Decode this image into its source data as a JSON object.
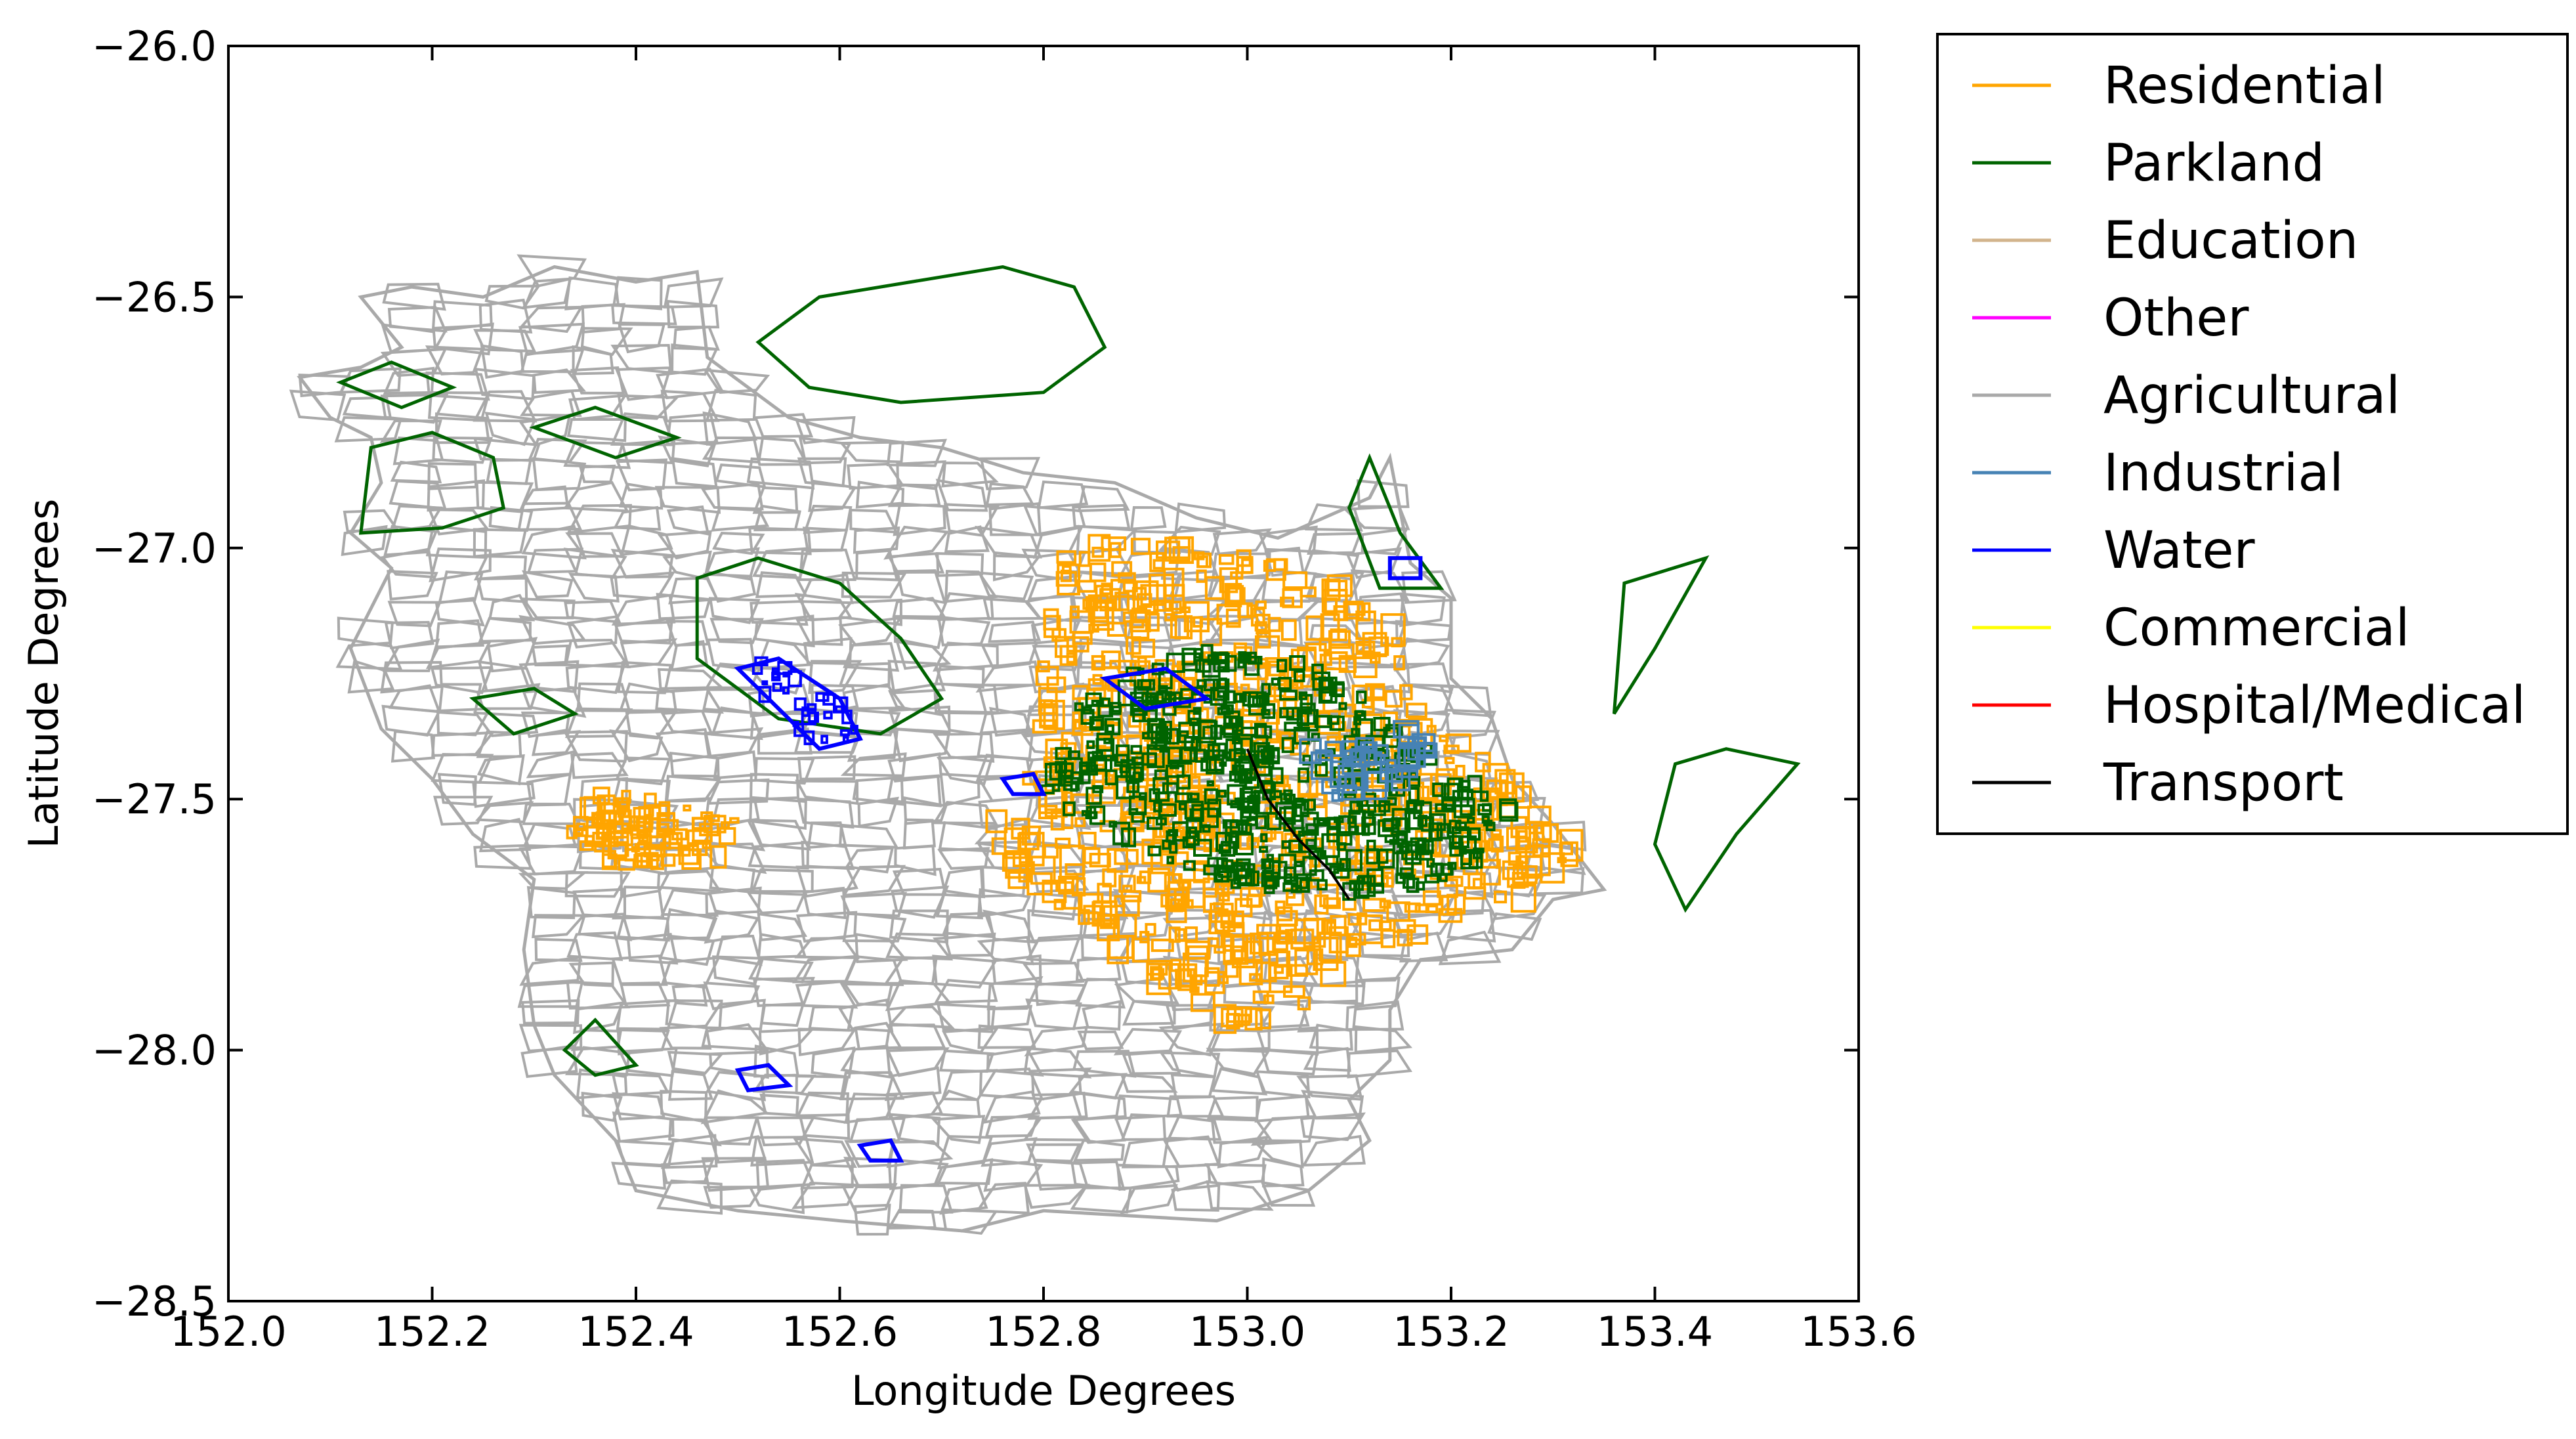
{
  "chart_data": {
    "type": "map",
    "title": "",
    "xlabel": "Longitude Degrees",
    "ylabel": "Latitude Degrees",
    "xlim": [
      152.0,
      153.6
    ],
    "ylim": [
      -28.5,
      -26.0
    ],
    "xticks": [
      152.0,
      152.2,
      152.4,
      152.6,
      152.8,
      153.0,
      153.2,
      153.4,
      153.6
    ],
    "xtick_labels": [
      "152.0",
      "152.2",
      "152.4",
      "152.6",
      "152.8",
      "153.0",
      "153.2",
      "153.4",
      "153.6"
    ],
    "yticks": [
      -26.0,
      -26.5,
      -27.0,
      -27.5,
      -28.0,
      -28.5
    ],
    "ytick_labels": [
      "−26.0",
      "−26.5",
      "−27.0",
      "−27.5",
      "−28.0",
      "−28.5"
    ],
    "grid": false,
    "legend_position": "outside-right-top",
    "series": [
      {
        "name": "Residential",
        "color": "#FFA500"
      },
      {
        "name": "Parkland",
        "color": "#006400"
      },
      {
        "name": "Education",
        "color": "#D2B48C"
      },
      {
        "name": "Other",
        "color": "#FF00FF"
      },
      {
        "name": "Agricultural",
        "color": "#A9A9A9"
      },
      {
        "name": "Industrial",
        "color": "#4682B4"
      },
      {
        "name": "Water",
        "color": "#0000FF"
      },
      {
        "name": "Commercial",
        "color": "#FFFF00"
      },
      {
        "name": "Hospital/Medical",
        "color": "#FF0000"
      },
      {
        "name": "Transport",
        "color": "#000000"
      }
    ],
    "regions": {
      "outline": [
        [
          152.07,
          -26.66
        ],
        [
          152.13,
          -26.64
        ],
        [
          152.17,
          -26.6
        ],
        [
          152.13,
          -26.5
        ],
        [
          152.18,
          -26.48
        ],
        [
          152.25,
          -26.5
        ],
        [
          152.32,
          -26.44
        ],
        [
          152.4,
          -26.47
        ],
        [
          152.46,
          -26.45
        ],
        [
          152.47,
          -26.62
        ],
        [
          152.55,
          -26.74
        ],
        [
          152.62,
          -26.78
        ],
        [
          152.7,
          -26.8
        ],
        [
          152.78,
          -26.85
        ],
        [
          152.87,
          -26.87
        ],
        [
          152.95,
          -26.94
        ],
        [
          153.03,
          -26.98
        ],
        [
          153.12,
          -26.9
        ],
        [
          153.14,
          -26.82
        ],
        [
          153.16,
          -27.03
        ],
        [
          153.2,
          -27.1
        ],
        [
          153.2,
          -27.26
        ],
        [
          153.24,
          -27.34
        ],
        [
          153.26,
          -27.46
        ],
        [
          153.3,
          -27.55
        ],
        [
          153.35,
          -27.68
        ],
        [
          153.3,
          -27.7
        ],
        [
          153.26,
          -27.8
        ],
        [
          153.17,
          -27.82
        ],
        [
          153.14,
          -27.92
        ],
        [
          153.14,
          -28.02
        ],
        [
          153.1,
          -28.1
        ],
        [
          153.12,
          -28.18
        ],
        [
          153.06,
          -28.28
        ],
        [
          152.97,
          -28.34
        ],
        [
          152.8,
          -28.32
        ],
        [
          152.72,
          -28.36
        ],
        [
          152.6,
          -28.34
        ],
        [
          152.5,
          -28.32
        ],
        [
          152.4,
          -28.28
        ],
        [
          152.38,
          -28.18
        ],
        [
          152.32,
          -28.05
        ],
        [
          152.3,
          -27.95
        ],
        [
          152.29,
          -27.8
        ],
        [
          152.3,
          -27.66
        ],
        [
          152.24,
          -27.57
        ],
        [
          152.2,
          -27.46
        ],
        [
          152.15,
          -27.36
        ],
        [
          152.12,
          -27.2
        ],
        [
          152.16,
          -27.04
        ],
        [
          152.12,
          -26.97
        ],
        [
          152.15,
          -26.87
        ],
        [
          152.14,
          -26.78
        ],
        [
          152.1,
          -26.74
        ],
        [
          152.07,
          -26.66
        ]
      ],
      "parkland": [
        [
          [
            152.52,
            -26.59
          ],
          [
            152.58,
            -26.5
          ],
          [
            152.76,
            -26.44
          ],
          [
            152.83,
            -26.48
          ],
          [
            152.86,
            -26.6
          ],
          [
            152.8,
            -26.69
          ],
          [
            152.66,
            -26.71
          ],
          [
            152.57,
            -26.68
          ],
          [
            152.52,
            -26.59
          ]
        ],
        [
          [
            152.11,
            -26.67
          ],
          [
            152.16,
            -26.63
          ],
          [
            152.22,
            -26.68
          ],
          [
            152.17,
            -26.72
          ],
          [
            152.11,
            -26.67
          ]
        ],
        [
          [
            152.14,
            -26.8
          ],
          [
            152.2,
            -26.77
          ],
          [
            152.26,
            -26.82
          ],
          [
            152.27,
            -26.92
          ],
          [
            152.21,
            -26.96
          ],
          [
            152.13,
            -26.97
          ],
          [
            152.14,
            -26.8
          ]
        ],
        [
          [
            152.3,
            -26.76
          ],
          [
            152.36,
            -26.72
          ],
          [
            152.44,
            -26.78
          ],
          [
            152.38,
            -26.82
          ],
          [
            152.3,
            -26.76
          ]
        ],
        [
          [
            152.46,
            -27.06
          ],
          [
            152.52,
            -27.02
          ],
          [
            152.6,
            -27.07
          ],
          [
            152.66,
            -27.18
          ],
          [
            152.7,
            -27.3
          ],
          [
            152.64,
            -27.37
          ],
          [
            152.54,
            -27.34
          ],
          [
            152.46,
            -27.22
          ],
          [
            152.46,
            -27.06
          ]
        ],
        [
          [
            153.1,
            -26.92
          ],
          [
            153.12,
            -26.82
          ],
          [
            153.15,
            -26.97
          ],
          [
            153.19,
            -27.08
          ],
          [
            153.13,
            -27.08
          ],
          [
            153.1,
            -26.92
          ]
        ],
        [
          [
            153.37,
            -27.07
          ],
          [
            153.45,
            -27.02
          ],
          [
            153.4,
            -27.2
          ],
          [
            153.36,
            -27.33
          ],
          [
            153.37,
            -27.07
          ]
        ],
        [
          [
            153.42,
            -27.43
          ],
          [
            153.47,
            -27.4
          ],
          [
            153.54,
            -27.43
          ],
          [
            153.48,
            -27.57
          ],
          [
            153.43,
            -27.72
          ],
          [
            153.4,
            -27.59
          ],
          [
            153.42,
            -27.43
          ]
        ],
        [
          [
            152.24,
            -27.3
          ],
          [
            152.3,
            -27.28
          ],
          [
            152.34,
            -27.33
          ],
          [
            152.28,
            -27.37
          ],
          [
            152.24,
            -27.3
          ]
        ],
        [
          [
            152.33,
            -28.0
          ],
          [
            152.36,
            -27.94
          ],
          [
            152.4,
            -28.03
          ],
          [
            152.36,
            -28.05
          ],
          [
            152.33,
            -28.0
          ]
        ]
      ],
      "urban": [
        [
          152.82,
          -27.0
        ],
        [
          152.95,
          -26.98
        ],
        [
          153.08,
          -27.06
        ],
        [
          153.15,
          -27.15
        ],
        [
          153.16,
          -27.3
        ],
        [
          153.22,
          -27.4
        ],
        [
          153.28,
          -27.5
        ],
        [
          153.33,
          -27.6
        ],
        [
          153.28,
          -27.7
        ],
        [
          153.2,
          -27.76
        ],
        [
          153.12,
          -27.8
        ],
        [
          153.05,
          -27.92
        ],
        [
          152.97,
          -27.96
        ],
        [
          152.92,
          -27.86
        ],
        [
          152.86,
          -27.78
        ],
        [
          152.8,
          -27.7
        ],
        [
          152.74,
          -27.62
        ],
        [
          152.76,
          -27.5
        ],
        [
          152.8,
          -27.38
        ],
        [
          152.8,
          -27.2
        ],
        [
          152.82,
          -27.0
        ]
      ],
      "parkland_urban": [
        [
          152.84,
          -27.28
        ],
        [
          152.96,
          -27.2
        ],
        [
          153.08,
          -27.24
        ],
        [
          153.18,
          -27.4
        ],
        [
          153.26,
          -27.52
        ],
        [
          153.22,
          -27.66
        ],
        [
          153.1,
          -27.7
        ],
        [
          152.98,
          -27.68
        ],
        [
          152.88,
          -27.58
        ],
        [
          152.8,
          -27.5
        ],
        [
          152.84,
          -27.28
        ]
      ],
      "industrial": [
        [
          153.05,
          -27.4
        ],
        [
          153.12,
          -27.38
        ],
        [
          153.2,
          -27.35
        ],
        [
          153.16,
          -27.48
        ],
        [
          153.08,
          -27.5
        ],
        [
          153.05,
          -27.4
        ]
      ],
      "residential_west": [
        [
          152.37,
          -27.48
        ],
        [
          152.42,
          -27.5
        ],
        [
          152.5,
          -27.54
        ],
        [
          152.48,
          -27.62
        ],
        [
          152.38,
          -27.64
        ],
        [
          152.33,
          -27.58
        ],
        [
          152.37,
          -27.48
        ]
      ],
      "water": [
        [
          [
            152.5,
            -27.24
          ],
          [
            152.54,
            -27.22
          ],
          [
            152.6,
            -27.3
          ],
          [
            152.62,
            -27.38
          ],
          [
            152.58,
            -27.4
          ],
          [
            152.54,
            -27.32
          ],
          [
            152.5,
            -27.24
          ]
        ],
        [
          [
            152.86,
            -27.26
          ],
          [
            152.92,
            -27.24
          ],
          [
            152.96,
            -27.3
          ],
          [
            152.9,
            -27.32
          ],
          [
            152.86,
            -27.26
          ]
        ],
        [
          [
            152.5,
            -28.04
          ],
          [
            152.53,
            -28.03
          ],
          [
            152.55,
            -28.07
          ],
          [
            152.51,
            -28.08
          ],
          [
            152.5,
            -28.04
          ]
        ],
        [
          [
            152.62,
            -28.19
          ],
          [
            152.65,
            -28.18
          ],
          [
            152.66,
            -28.22
          ],
          [
            152.63,
            -28.22
          ],
          [
            152.62,
            -28.19
          ]
        ],
        [
          [
            152.76,
            -27.46
          ],
          [
            152.79,
            -27.45
          ],
          [
            152.8,
            -27.49
          ],
          [
            152.77,
            -27.49
          ],
          [
            152.76,
            -27.46
          ]
        ],
        [
          [
            153.14,
            -27.02
          ],
          [
            153.17,
            -27.02
          ],
          [
            153.17,
            -27.06
          ],
          [
            153.14,
            -27.06
          ],
          [
            153.14,
            -27.02
          ]
        ]
      ],
      "transport": [
        [
          153.0,
          -27.4
        ],
        [
          153.02,
          -27.5
        ],
        [
          153.05,
          -27.58
        ],
        [
          153.08,
          -27.64
        ],
        [
          153.1,
          -27.7
        ]
      ]
    }
  }
}
